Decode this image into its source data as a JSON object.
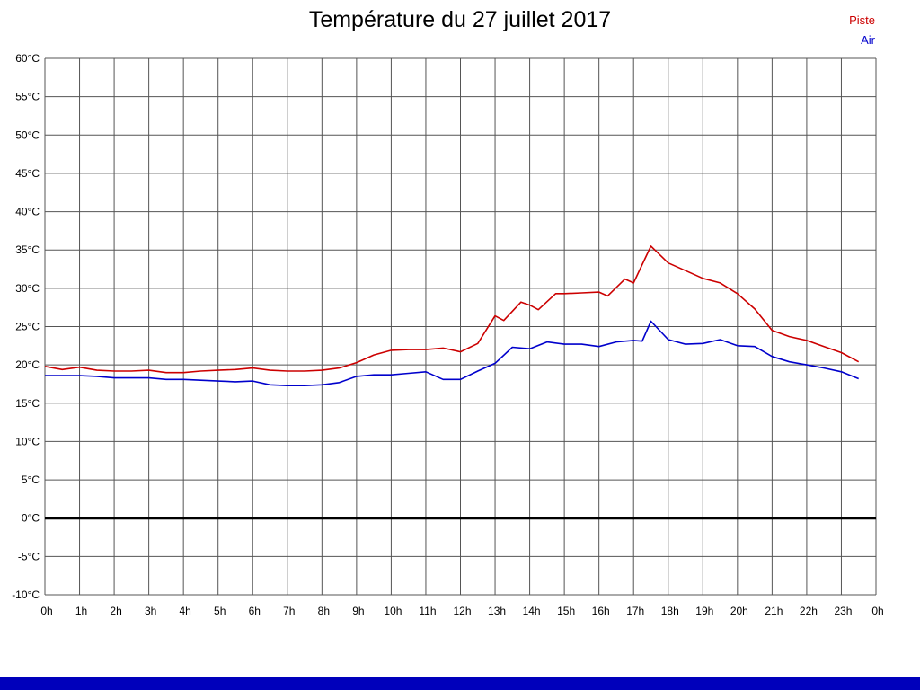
{
  "chart_data": {
    "type": "line",
    "title": "Température du 27 juillet 2017",
    "xlabel": "",
    "ylabel": "",
    "xlim": [
      0,
      24
    ],
    "ylim": [
      -10,
      60
    ],
    "grid": true,
    "grid_color": "#555555",
    "zero_line": true,
    "zero_line_color": "#000000",
    "y_unit": "°C",
    "y_ticks": [
      60,
      55,
      50,
      45,
      40,
      35,
      30,
      25,
      20,
      15,
      10,
      5,
      0,
      -5,
      -10
    ],
    "x_tick_labels": [
      "0h",
      "1h",
      "2h",
      "3h",
      "4h",
      "5h",
      "6h",
      "7h",
      "8h",
      "9h",
      "10h",
      "11h",
      "12h",
      "13h",
      "14h",
      "15h",
      "16h",
      "17h",
      "18h",
      "19h",
      "20h",
      "21h",
      "22h",
      "23h",
      "0h"
    ],
    "legend_position": "top-right",
    "legend": [
      {
        "name": "Piste",
        "color": "#cc0000"
      },
      {
        "name": "Air",
        "color": "#0000cc"
      }
    ],
    "series": [
      {
        "name": "Piste",
        "color": "#cc0000",
        "points": [
          [
            0,
            19.8
          ],
          [
            0.5,
            19.4
          ],
          [
            1,
            19.7
          ],
          [
            1.5,
            19.3
          ],
          [
            2,
            19.2
          ],
          [
            2.5,
            19.2
          ],
          [
            3,
            19.3
          ],
          [
            3.5,
            19.0
          ],
          [
            4,
            19.0
          ],
          [
            4.5,
            19.2
          ],
          [
            5,
            19.3
          ],
          [
            5.5,
            19.4
          ],
          [
            6,
            19.6
          ],
          [
            6.5,
            19.3
          ],
          [
            7,
            19.2
          ],
          [
            7.5,
            19.2
          ],
          [
            8,
            19.3
          ],
          [
            8.5,
            19.6
          ],
          [
            9,
            20.3
          ],
          [
            9.5,
            21.3
          ],
          [
            10,
            21.9
          ],
          [
            10.5,
            22.0
          ],
          [
            11,
            22.0
          ],
          [
            11.5,
            22.2
          ],
          [
            12,
            21.7
          ],
          [
            12.5,
            22.8
          ],
          [
            13,
            26.4
          ],
          [
            13.25,
            25.8
          ],
          [
            13.75,
            28.2
          ],
          [
            14,
            27.8
          ],
          [
            14.25,
            27.2
          ],
          [
            14.75,
            29.3
          ],
          [
            15,
            29.3
          ],
          [
            15.5,
            29.4
          ],
          [
            16,
            29.5
          ],
          [
            16.25,
            29.0
          ],
          [
            16.75,
            31.2
          ],
          [
            17,
            30.7
          ],
          [
            17.5,
            35.5
          ],
          [
            18,
            33.3
          ],
          [
            18.5,
            32.3
          ],
          [
            19,
            31.3
          ],
          [
            19.5,
            30.7
          ],
          [
            20,
            29.3
          ],
          [
            20.5,
            27.3
          ],
          [
            21,
            24.5
          ],
          [
            21.5,
            23.7
          ],
          [
            22,
            23.2
          ],
          [
            22.5,
            22.4
          ],
          [
            23,
            21.6
          ],
          [
            23.5,
            20.4
          ]
        ]
      },
      {
        "name": "Air",
        "color": "#0000cc",
        "points": [
          [
            0,
            18.6
          ],
          [
            0.5,
            18.6
          ],
          [
            1,
            18.6
          ],
          [
            1.5,
            18.5
          ],
          [
            2,
            18.3
          ],
          [
            2.5,
            18.3
          ],
          [
            3,
            18.3
          ],
          [
            3.5,
            18.1
          ],
          [
            4,
            18.1
          ],
          [
            4.5,
            18.0
          ],
          [
            5,
            17.9
          ],
          [
            5.5,
            17.8
          ],
          [
            6,
            17.9
          ],
          [
            6.5,
            17.4
          ],
          [
            7,
            17.3
          ],
          [
            7.5,
            17.3
          ],
          [
            8,
            17.4
          ],
          [
            8.5,
            17.7
          ],
          [
            9,
            18.5
          ],
          [
            9.5,
            18.7
          ],
          [
            10,
            18.7
          ],
          [
            10.5,
            18.9
          ],
          [
            11,
            19.1
          ],
          [
            11.5,
            18.1
          ],
          [
            12,
            18.1
          ],
          [
            12.5,
            19.2
          ],
          [
            13,
            20.2
          ],
          [
            13.5,
            22.3
          ],
          [
            14,
            22.1
          ],
          [
            14.5,
            23.0
          ],
          [
            15,
            22.7
          ],
          [
            15.5,
            22.7
          ],
          [
            16,
            22.4
          ],
          [
            16.5,
            23.0
          ],
          [
            17,
            23.2
          ],
          [
            17.25,
            23.1
          ],
          [
            17.5,
            25.7
          ],
          [
            18,
            23.3
          ],
          [
            18.5,
            22.7
          ],
          [
            19,
            22.8
          ],
          [
            19.5,
            23.3
          ],
          [
            20,
            22.5
          ],
          [
            20.5,
            22.4
          ],
          [
            21,
            21.1
          ],
          [
            21.5,
            20.4
          ],
          [
            22,
            20.0
          ],
          [
            22.5,
            19.6
          ],
          [
            23,
            19.1
          ],
          [
            23.5,
            18.2
          ]
        ]
      }
    ]
  },
  "footer_bar": {
    "color": "#0000bb"
  }
}
